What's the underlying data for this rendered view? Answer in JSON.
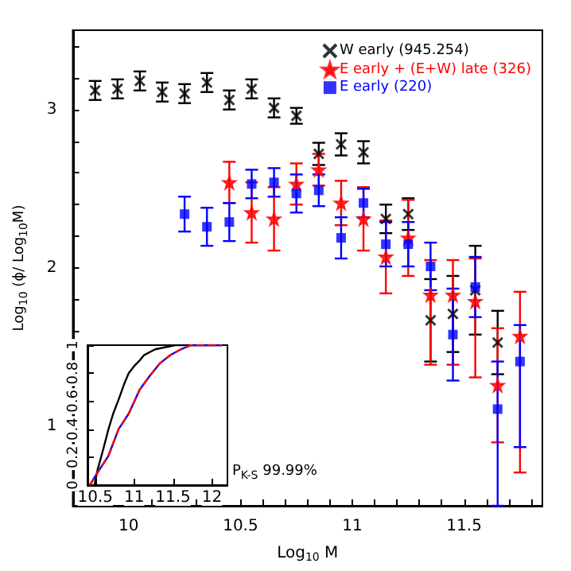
{
  "chart_data": [
    {
      "type": "scatter",
      "xlabel": "Log$_{10}$ M",
      "ylabel": "Log$_{10}$ (ϕ/ Log$_{10}$M)",
      "annotations": [
        "P$_{K-S}$ 99.99%"
      ],
      "xlim": [
        9.75,
        11.85
      ],
      "ylim": [
        0.5,
        3.5
      ],
      "xticks": [
        {
          "value": 9.8,
          "label": null
        },
        {
          "value": 9.9,
          "label": null
        },
        10,
        {
          "value": 10.1,
          "label": null
        },
        {
          "value": 10.2,
          "label": null
        },
        {
          "value": 10.3,
          "label": null
        },
        {
          "value": 10.4,
          "label": null
        },
        10.5,
        {
          "value": 10.6,
          "label": null
        },
        {
          "value": 10.7,
          "label": null
        },
        {
          "value": 10.8,
          "label": null
        },
        {
          "value": 10.9,
          "label": null
        },
        11,
        {
          "value": 11.1,
          "label": null
        },
        {
          "value": 11.2,
          "label": null
        },
        {
          "value": 11.3,
          "label": null
        },
        {
          "value": 11.4,
          "label": null
        },
        11.5,
        {
          "value": 11.6,
          "label": null
        },
        {
          "value": 11.7,
          "label": null
        },
        {
          "value": 11.8,
          "label": null
        }
      ],
      "yticks": [
        {
          "value": 0.6,
          "label": null
        },
        {
          "value": 0.8,
          "label": null
        },
        1,
        {
          "value": 1.2,
          "label": null
        },
        {
          "value": 1.4,
          "label": null
        },
        {
          "value": 1.6,
          "label": null
        },
        {
          "value": 1.8,
          "label": null
        },
        2,
        {
          "value": 2.2,
          "label": null
        },
        {
          "value": 2.4,
          "label": null
        },
        {
          "value": 2.6,
          "label": null
        },
        {
          "value": 2.8,
          "label": null
        },
        3,
        {
          "value": 3.2,
          "label": null
        },
        {
          "value": 3.4,
          "label": null
        }
      ],
      "grid": false,
      "legend": "top right",
      "series": [
        {
          "name": "W early (945.254)",
          "color": "#000000",
          "marker": "cross",
          "x": [
            9.85,
            9.95,
            10.05,
            10.15,
            10.25,
            10.35,
            10.45,
            10.55,
            10.65,
            10.75,
            10.85,
            10.95,
            11.05,
            11.15,
            11.25,
            11.35,
            11.45,
            11.55,
            11.65
          ],
          "values": [
            3.12,
            3.13,
            3.18,
            3.11,
            3.1,
            3.17,
            3.06,
            3.13,
            3.01,
            2.96,
            2.72,
            2.78,
            2.73,
            2.31,
            2.34,
            1.67,
            1.71,
            1.86,
            1.53
          ],
          "errors": [
            0.06,
            0.06,
            0.06,
            0.06,
            0.06,
            0.06,
            0.06,
            0.06,
            0.06,
            0.05,
            0.07,
            0.07,
            0.07,
            0.09,
            0.1,
            0.26,
            0.24,
            0.28,
            0.2
          ]
        },
        {
          "name": "E early + (E+W) late (326)",
          "color": "#ff0000",
          "marker": "star",
          "x": [
            10.45,
            10.55,
            10.65,
            10.75,
            10.85,
            10.95,
            11.05,
            11.15,
            11.25,
            11.35,
            11.45,
            11.55,
            11.65,
            11.75
          ],
          "values": [
            2.54,
            2.35,
            2.31,
            2.53,
            2.62,
            2.41,
            2.31,
            2.07,
            2.19,
            1.83,
            1.83,
            1.79,
            1.26,
            1.57
          ],
          "errors": [
            0.13,
            0.19,
            0.2,
            0.13,
            0.1,
            0.14,
            0.2,
            0.23,
            0.24,
            [
              1.39,
              2.05
            ],
            [
              1.39,
              2.05
            ],
            [
              1.31,
              2.06
            ],
            0.36,
            [
              0.71,
              1.85
            ]
          ]
        },
        {
          "name": "E early (220)",
          "color": "#0000ff",
          "marker": "square",
          "x": [
            10.25,
            10.35,
            10.45,
            10.55,
            10.65,
            10.75,
            10.85,
            10.95,
            11.05,
            11.15,
            11.25,
            11.35,
            11.45,
            11.55,
            11.65,
            11.75
          ],
          "values": [
            2.34,
            2.26,
            2.29,
            2.53,
            2.54,
            2.47,
            2.49,
            2.19,
            2.41,
            2.15,
            2.15,
            2.01,
            1.58,
            1.88,
            1.11,
            1.41
          ],
          "errors": [
            0.11,
            0.12,
            0.12,
            0.09,
            0.09,
            0.12,
            0.1,
            0.13,
            0.09,
            0.14,
            0.14,
            0.15,
            0.29,
            0.19,
            [
              0.5,
              1.41
            ],
            [
              0.87,
              1.64
            ]
          ]
        }
      ]
    },
    {
      "type": "line",
      "xlim": [
        10.4,
        12.2
      ],
      "ylim": [
        0,
        1
      ],
      "xticks": [
        10.5,
        11,
        11.5,
        12
      ],
      "yticks": [
        0,
        0.2,
        0.4,
        0.6,
        0.8,
        1
      ],
      "grid": false,
      "legend": false,
      "marker": "none",
      "series": [
        {
          "color": "#000000",
          "line_style": "solid",
          "x": [
            10.49,
            10.53,
            10.6,
            10.67,
            10.73,
            10.8,
            10.87,
            10.93,
            11.0,
            11.07,
            11.13,
            11.27,
            11.53,
            12.13
          ],
          "values": [
            0,
            0.11,
            0.25,
            0.4,
            0.51,
            0.61,
            0.72,
            0.8,
            0.85,
            0.89,
            0.93,
            0.97,
            1,
            1
          ]
        },
        {
          "color": "#0000ff",
          "line_style": "solid",
          "x": [
            10.43,
            10.53,
            10.67,
            10.8,
            10.93,
            11.07,
            11.2,
            11.33,
            11.47,
            11.6,
            11.73,
            12.13
          ],
          "values": [
            0,
            0.09,
            0.21,
            0.4,
            0.51,
            0.68,
            0.78,
            0.87,
            0.93,
            0.97,
            1,
            1
          ]
        },
        {
          "color": "#ff0000",
          "line_style": "dashed",
          "x": [
            10.43,
            10.53,
            10.67,
            10.8,
            10.93,
            11.07,
            11.2,
            11.33,
            11.47,
            11.6,
            11.73,
            12.13
          ],
          "values": [
            0,
            0.09,
            0.21,
            0.4,
            0.51,
            0.68,
            0.78,
            0.87,
            0.93,
            0.97,
            1,
            1
          ]
        }
      ]
    }
  ]
}
